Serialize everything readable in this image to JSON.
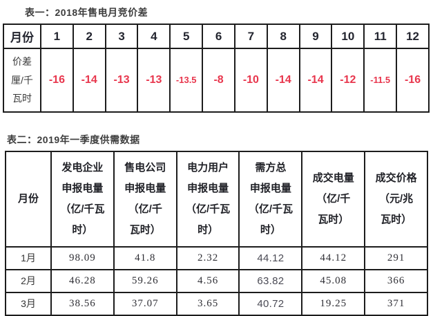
{
  "colors": {
    "border": "#1c1c1c",
    "header_text": "#23252f",
    "value_red": "#e8364d",
    "title_text": "#3d3d3d",
    "body_text": "#33333a"
  },
  "table1": {
    "title": "表一：2018年售电月竞价差",
    "row_header": "月份",
    "months": [
      "1",
      "2",
      "3",
      "4",
      "5",
      "6",
      "7",
      "8",
      "9",
      "10",
      "11",
      "12"
    ],
    "value_label": "价差厘/千瓦时",
    "value_label_lines": [
      "价差",
      "厘/千",
      "瓦时"
    ],
    "values": [
      "-16",
      "-14",
      "-13",
      "-13",
      "-13.5",
      "-8",
      "-10",
      "-14",
      "-14",
      "-12",
      "-11.5",
      "-16"
    ]
  },
  "table2": {
    "title": "表二：2019年一季度供需数据",
    "headers": [
      {
        "label": "月份",
        "lines": [
          "月份"
        ]
      },
      {
        "label": "发电企业申报电量（亿/千瓦时）",
        "lines": [
          "发电企业",
          "申报电量",
          "（亿/千瓦",
          "时）"
        ]
      },
      {
        "label": "售电公司申报电量（亿/千瓦时）",
        "lines": [
          "售电公司",
          "申报电量",
          "（亿/千",
          "瓦时）"
        ]
      },
      {
        "label": "电力用户申报电量（亿/千瓦时）",
        "lines": [
          "电力用户",
          "申报电量",
          "（亿/千瓦",
          "时）"
        ]
      },
      {
        "label": "需方总申报电量（亿/千瓦时）",
        "lines": [
          "需方总",
          "申报电量",
          "（亿/千瓦",
          "时）"
        ]
      },
      {
        "label": "成交电量（亿/千瓦时）",
        "lines": [
          "成交电量",
          "（亿/千",
          "瓦时）"
        ]
      },
      {
        "label": "成交价格（元/兆瓦时）",
        "lines": [
          "成交价格",
          "（元/兆",
          "瓦时）"
        ]
      }
    ],
    "rows": [
      [
        "1月",
        "98.09",
        "41.8",
        "2.32",
        "44.12",
        "44.12",
        "291"
      ],
      [
        "2月",
        "46.28",
        "59.26",
        "4.56",
        "63.82",
        "45.08",
        "366"
      ],
      [
        "3月",
        "38.56",
        "37.07",
        "3.65",
        "40.72",
        "19.25",
        "371"
      ]
    ]
  }
}
